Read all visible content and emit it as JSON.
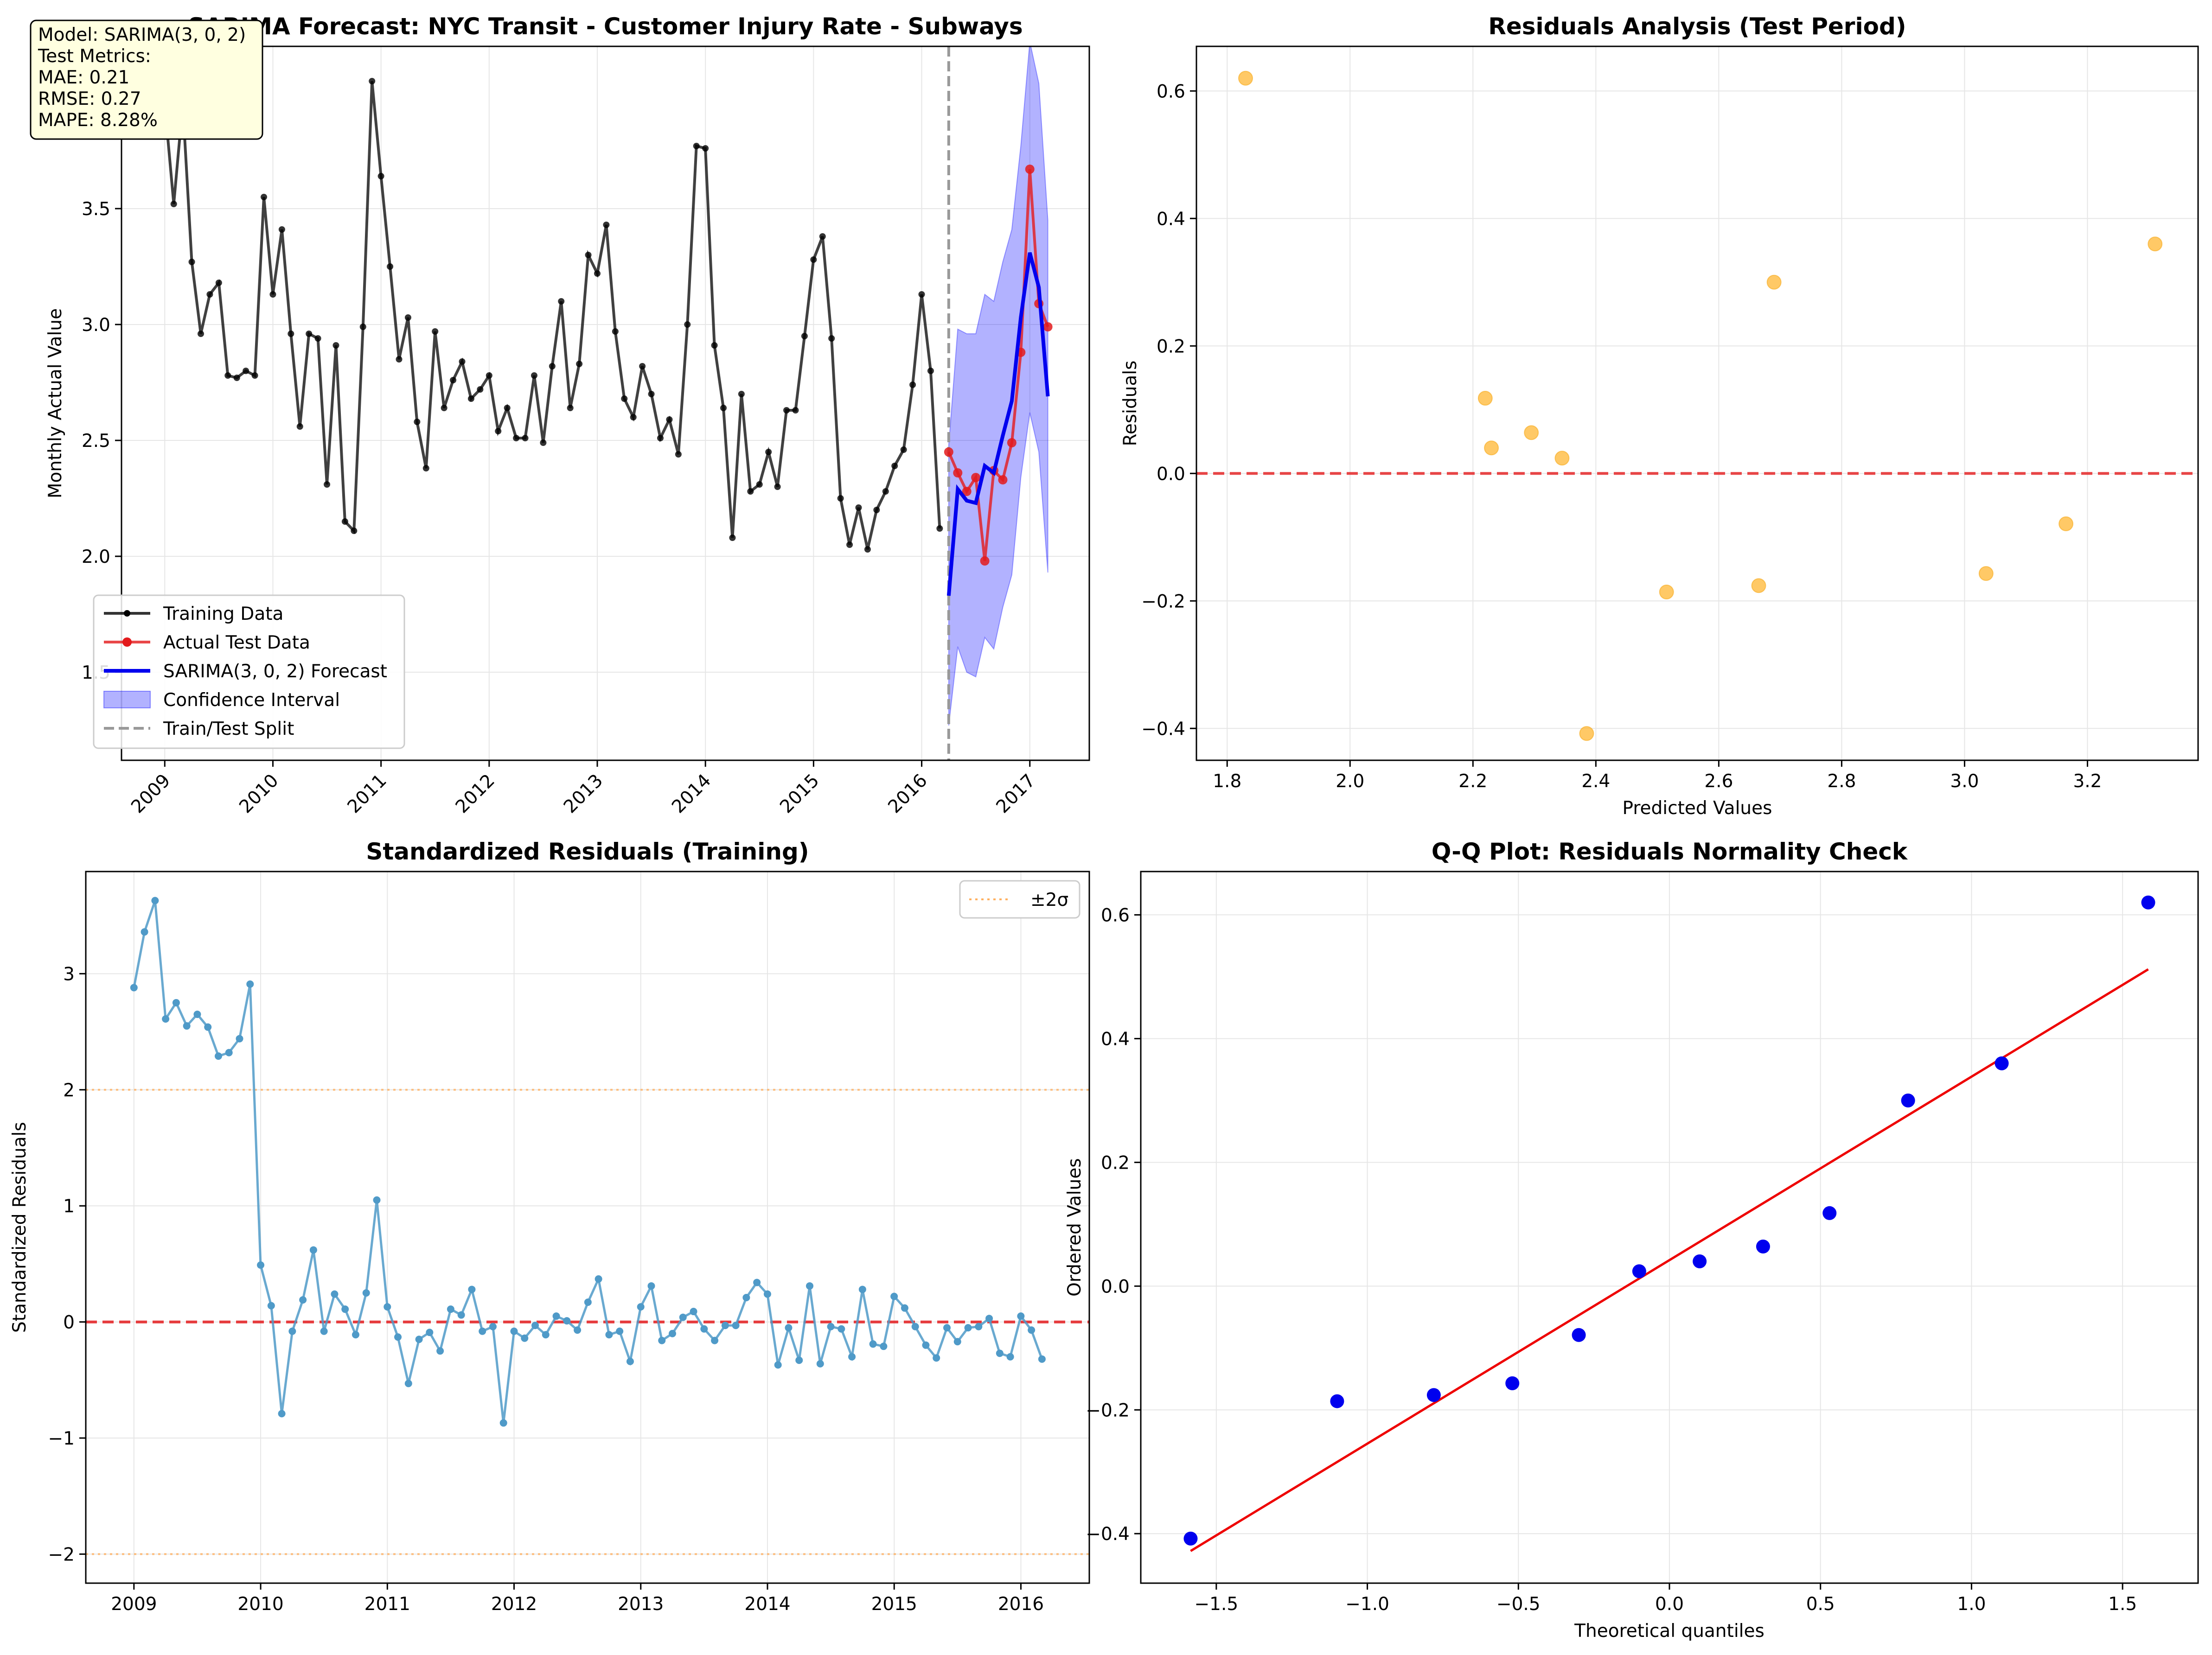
{
  "chart_data": [
    {
      "id": "forecast",
      "type": "line",
      "title": "SARIMA Forecast: NYC Transit - Customer Injury Rate - Subways",
      "xlabel": "",
      "ylabel": "Monthly Actual Value",
      "xlim": [
        2008.6,
        2017.55
      ],
      "ylim": [
        1.12,
        4.2
      ],
      "xticks": [
        2009,
        2010,
        2011,
        2012,
        2013,
        2014,
        2015,
        2016,
        2017
      ],
      "xtick_labels": [
        "2009",
        "2010",
        "2011",
        "2012",
        "2013",
        "2014",
        "2015",
        "2016",
        "2017"
      ],
      "yticks": [
        1.5,
        2.0,
        2.5,
        3.0,
        3.5
      ],
      "ytick_labels": [
        "1.5",
        "2.0",
        "2.5",
        "3.0",
        "3.5"
      ],
      "grid": true,
      "legend_position": "lower-left",
      "split_x": 2016.25,
      "metrics_box": {
        "lines": [
          "Model: SARIMA(3, 0, 2)",
          "Test Metrics:",
          "MAE: 0.21",
          "RMSE: 0.27",
          "MAPE: 8.28%"
        ],
        "position": "top-left"
      },
      "series": [
        {
          "name": "Training Data",
          "color": "#000000",
          "style": "line-dot",
          "x_start": 2009.0,
          "x_step": 0.08333,
          "values": [
            3.95,
            3.52,
            3.95,
            3.27,
            2.96,
            3.13,
            3.18,
            2.78,
            2.77,
            2.8,
            2.78,
            3.55,
            3.13,
            3.41,
            2.96,
            2.56,
            2.96,
            2.94,
            2.31,
            2.91,
            2.15,
            2.11,
            2.99,
            4.05,
            3.64,
            3.25,
            2.85,
            3.03,
            2.58,
            2.38,
            2.97,
            2.64,
            2.76,
            2.84,
            2.68,
            2.72,
            2.78,
            2.54,
            2.64,
            2.51,
            2.51,
            2.78,
            2.49,
            2.82,
            3.1,
            2.64,
            2.83,
            3.3,
            3.22,
            3.43,
            2.97,
            2.68,
            2.6,
            2.82,
            2.7,
            2.51,
            2.59,
            2.44,
            3.0,
            3.77,
            3.76,
            2.91,
            2.64,
            2.08,
            2.7,
            2.28,
            2.31,
            2.45,
            2.3,
            2.63,
            2.63,
            2.95,
            3.28,
            3.38,
            2.94,
            2.25,
            2.05,
            2.21,
            2.03,
            2.2,
            2.28,
            2.39,
            2.46,
            2.74,
            3.13,
            2.8,
            2.12
          ]
        },
        {
          "name": "Actual Test Data",
          "color": "#e31a1c",
          "style": "line-dot",
          "x_start": 2016.25,
          "x_step": 0.08333,
          "values": [
            2.45,
            2.36,
            2.28,
            2.34,
            1.98,
            2.37,
            2.33,
            2.49,
            2.88,
            3.67,
            3.09,
            2.99
          ]
        },
        {
          "name": "SARIMA(3, 0, 2) Forecast",
          "color": "#0000ee",
          "style": "line",
          "x_start": 2016.25,
          "x_step": 0.08333,
          "values": [
            1.83,
            2.29,
            2.24,
            2.23,
            2.39,
            2.36,
            2.52,
            2.67,
            3.03,
            3.31,
            3.16,
            2.69
          ]
        }
      ],
      "confidence_interval": {
        "name": "Confidence Interval",
        "color": "#0000ff",
        "lower": [
          1.27,
          1.61,
          1.5,
          1.48,
          1.65,
          1.6,
          1.78,
          1.92,
          2.34,
          2.62,
          2.45,
          1.93
        ],
        "upper": [
          2.48,
          2.98,
          2.96,
          2.96,
          3.13,
          3.1,
          3.27,
          3.41,
          3.77,
          4.22,
          4.04,
          3.45
        ]
      },
      "split_legend": {
        "name": "Train/Test Split",
        "color": "#999999"
      }
    },
    {
      "id": "residuals",
      "type": "scatter",
      "title": "Residuals Analysis (Test Period)",
      "xlabel": "Predicted Values",
      "ylabel": "Residuals",
      "xlim": [
        1.75,
        3.38
      ],
      "ylim": [
        -0.45,
        0.67
      ],
      "xticks": [
        1.8,
        2.0,
        2.2,
        2.4,
        2.6,
        2.8,
        3.0,
        3.2
      ],
      "xtick_labels": [
        "1.8",
        "2.0",
        "2.2",
        "2.4",
        "2.6",
        "2.8",
        "3.0",
        "3.2"
      ],
      "yticks": [
        -0.4,
        -0.2,
        0.0,
        0.2,
        0.4,
        0.6
      ],
      "ytick_labels": [
        "−0.4",
        "−0.2",
        "0.0",
        "0.2",
        "0.4",
        "0.6"
      ],
      "grid": true,
      "color": "#ffb733",
      "reference_line": {
        "y": 0,
        "color": "#e31a1c"
      },
      "x": [
        1.83,
        2.22,
        2.23,
        2.295,
        2.345,
        2.385,
        2.515,
        2.665,
        2.69,
        3.035,
        3.165,
        3.31
      ],
      "y": [
        0.62,
        0.118,
        0.04,
        0.064,
        0.024,
        -0.408,
        -0.186,
        -0.176,
        0.3,
        -0.157,
        -0.079,
        0.36
      ]
    },
    {
      "id": "std-residuals",
      "type": "line",
      "title": "Standardized Residuals (Training)",
      "xlabel": "",
      "ylabel": "Standardized Residuals",
      "xlim": [
        2008.62,
        2016.54
      ],
      "ylim": [
        -2.25,
        3.88
      ],
      "xticks": [
        2009,
        2010,
        2011,
        2012,
        2013,
        2014,
        2015,
        2016
      ],
      "xtick_labels": [
        "2009",
        "2010",
        "2011",
        "2012",
        "2013",
        "2014",
        "2015",
        "2016"
      ],
      "yticks": [
        -2,
        -1,
        0,
        1,
        2,
        3
      ],
      "ytick_labels": [
        "−2",
        "−1",
        "0",
        "1",
        "2",
        "3"
      ],
      "grid": true,
      "legend_position": "top-right",
      "color": "#4f9ac8",
      "reference_line": {
        "y": 0,
        "color": "#e31a1c"
      },
      "sigma_lines": {
        "name": "±2σ",
        "values": [
          2,
          -2
        ],
        "color": "#ffb060"
      },
      "x_start": 2009.0,
      "x_step": 0.08333,
      "values": [
        2.88,
        3.36,
        3.63,
        2.61,
        2.75,
        2.55,
        2.65,
        2.54,
        2.29,
        2.32,
        2.44,
        2.91,
        0.49,
        0.14,
        -0.79,
        -0.08,
        0.19,
        0.62,
        -0.08,
        0.24,
        0.11,
        -0.11,
        0.25,
        1.05,
        0.13,
        -0.13,
        -0.53,
        -0.15,
        -0.09,
        -0.25,
        0.11,
        0.06,
        0.28,
        -0.08,
        -0.04,
        -0.87,
        -0.08,
        -0.14,
        -0.03,
        -0.11,
        0.05,
        0.01,
        -0.07,
        0.17,
        0.37,
        -0.11,
        -0.08,
        -0.34,
        0.13,
        0.31,
        -0.16,
        -0.1,
        0.04,
        0.09,
        -0.06,
        -0.16,
        -0.03,
        -0.03,
        0.21,
        0.34,
        0.24,
        -0.37,
        -0.05,
        -0.33,
        0.31,
        -0.36,
        -0.04,
        -0.06,
        -0.3,
        0.28,
        -0.19,
        -0.21,
        0.22,
        0.12,
        -0.04,
        -0.2,
        -0.31,
        -0.05,
        -0.17,
        -0.05,
        -0.04,
        0.03,
        -0.27,
        -0.3,
        0.05,
        -0.07,
        -0.32
      ]
    },
    {
      "id": "qq",
      "type": "scatter",
      "title": "Q-Q Plot: Residuals Normality Check",
      "xlabel": "Theoretical quantiles",
      "ylabel": "Ordered Values",
      "xlim": [
        -1.75,
        1.75
      ],
      "ylim": [
        -0.48,
        0.67
      ],
      "xticks": [
        -1.5,
        -1.0,
        -0.5,
        0.0,
        0.5,
        1.0,
        1.5
      ],
      "xtick_labels": [
        "−1.5",
        "−1.0",
        "−0.5",
        "0.0",
        "0.5",
        "1.0",
        "1.5"
      ],
      "yticks": [
        -0.4,
        -0.2,
        0.0,
        0.2,
        0.4,
        0.6
      ],
      "ytick_labels": [
        "−0.4",
        "−0.2",
        "0.0",
        "0.2",
        "0.4",
        "0.6"
      ],
      "grid": true,
      "color": "#0000ee",
      "fit_line": {
        "x": [
          -1.585,
          1.585
        ],
        "y": [
          -0.428,
          0.512
        ],
        "color": "#ee0000"
      },
      "x": [
        -1.585,
        -1.1,
        -0.78,
        -0.52,
        -0.3,
        -0.1,
        0.1,
        0.31,
        0.53,
        0.79,
        1.1,
        1.585
      ],
      "y": [
        -0.408,
        -0.186,
        -0.176,
        -0.157,
        -0.079,
        0.024,
        0.04,
        0.064,
        0.118,
        0.3,
        0.36,
        0.62
      ]
    }
  ]
}
